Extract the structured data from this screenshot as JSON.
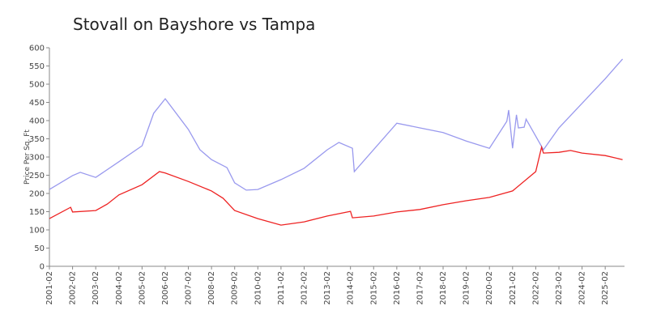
{
  "chart_data": {
    "type": "line",
    "title": "Stovall on Bayshore vs Tampa",
    "y_label": "Price Per Sq. Ft",
    "series": [
      {
        "color": "#9999ee",
        "x": [
          "2001-02",
          "2002-02",
          "2002-06",
          "2003-02",
          "2004-02",
          "2005-02",
          "2005-08",
          "2006-02",
          "2007-02",
          "2007-08",
          "2008-02",
          "2008-10",
          "2009-02",
          "2009-08",
          "2010-02",
          "2011-02",
          "2012-02",
          "2013-02",
          "2013-08",
          "2014-03",
          "2014-04",
          "2016-02",
          "2017-02",
          "2018-02",
          "2019-02",
          "2020-02",
          "2020-11",
          "2020-12",
          "2021-02",
          "2021-04",
          "2021-05",
          "2021-08",
          "2021-09",
          "2022-06",
          "2023-02",
          "2025-02",
          "2025-11"
        ],
        "values": [
          211,
          249,
          258,
          244,
          287,
          331,
          420,
          460,
          376,
          320,
          293,
          271,
          229,
          209,
          211,
          238,
          269,
          320,
          340,
          324,
          260,
          393,
          380,
          367,
          344,
          324,
          398,
          429,
          324,
          416,
          380,
          382,
          404,
          320,
          380,
          515,
          569
        ]
      },
      {
        "color": "#ee2222",
        "x": [
          "2001-02",
          "2002-01",
          "2002-02",
          "2003-02",
          "2003-08",
          "2004-02",
          "2005-02",
          "2005-11",
          "2006-02",
          "2007-02",
          "2008-02",
          "2008-08",
          "2009-02",
          "2010-02",
          "2011-02",
          "2012-02",
          "2013-02",
          "2014-02",
          "2014-03",
          "2015-02",
          "2016-02",
          "2017-02",
          "2018-02",
          "2019-02",
          "2020-02",
          "2021-02",
          "2022-02",
          "2022-05",
          "2022-06",
          "2023-02",
          "2023-08",
          "2024-02",
          "2025-02",
          "2025-11"
        ],
        "values": [
          131,
          162,
          149,
          153,
          171,
          196,
          224,
          260,
          256,
          233,
          207,
          187,
          153,
          131,
          113,
          122,
          138,
          151,
          133,
          138,
          149,
          156,
          169,
          180,
          189,
          207,
          260,
          327,
          311,
          313,
          318,
          311,
          304,
          293
        ]
      }
    ],
    "xlim": [
      "2001-02",
      "2025-12"
    ],
    "xticks": [
      "2001-02",
      "2002-02",
      "2003-02",
      "2004-02",
      "2005-02",
      "2006-02",
      "2007-02",
      "2008-02",
      "2009-02",
      "2010-02",
      "2011-02",
      "2012-02",
      "2013-02",
      "2014-02",
      "2015-02",
      "2016-02",
      "2017-02",
      "2018-02",
      "2019-02",
      "2020-02",
      "2021-02",
      "2022-02",
      "2023-02",
      "2024-02",
      "2025-02"
    ],
    "ylim": [
      0,
      600
    ],
    "yticks": [
      0,
      50,
      100,
      150,
      200,
      250,
      300,
      350,
      400,
      450,
      500,
      550,
      600
    ]
  }
}
